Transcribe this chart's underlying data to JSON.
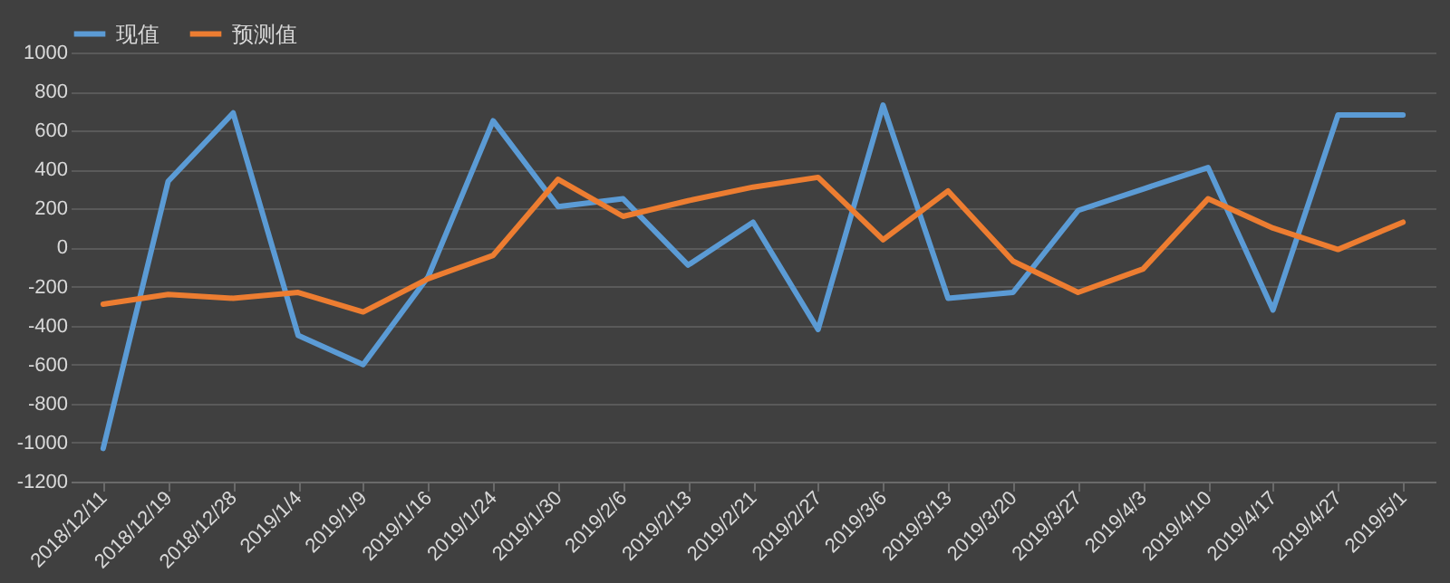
{
  "chart_data": {
    "type": "line",
    "categories": [
      "2018/12/11",
      "2018/12/19",
      "2018/12/28",
      "2019/1/4",
      "2019/1/9",
      "2019/1/16",
      "2019/1/24",
      "2019/1/30",
      "2019/2/6",
      "2019/2/13",
      "2019/2/21",
      "2019/2/27",
      "2019/3/6",
      "2019/3/13",
      "2019/3/20",
      "2019/3/27",
      "2019/4/3",
      "2019/4/10",
      "2019/4/17",
      "2019/4/27",
      "2019/5/1"
    ],
    "series": [
      {
        "name": "现值",
        "color": "#5b9bd5",
        "values": [
          -1030,
          340,
          690,
          -450,
          -600,
          -150,
          650,
          210,
          250,
          -90,
          130,
          -420,
          730,
          -260,
          -230,
          190,
          300,
          410,
          -320,
          680,
          680
        ]
      },
      {
        "name": "预测值",
        "color": "#ed7d31",
        "values": [
          -290,
          -240,
          -260,
          -230,
          -330,
          -160,
          -40,
          350,
          160,
          240,
          310,
          360,
          40,
          290,
          -70,
          -230,
          -110,
          250,
          100,
          -10,
          130
        ]
      }
    ],
    "ylim": [
      -1200,
      1000
    ],
    "yticks": [
      -1200,
      -1000,
      -800,
      -600,
      -400,
      -200,
      0,
      200,
      400,
      600,
      800,
      1000
    ],
    "grid": "y",
    "legend": "top",
    "marker": "none",
    "line_style": "solid"
  }
}
